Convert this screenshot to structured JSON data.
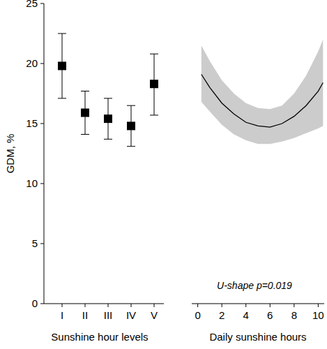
{
  "chart_data": [
    {
      "type": "point",
      "x_label": "Sunshine hour levels",
      "y_label": "GDM, %",
      "categories": [
        "I",
        "II",
        "III",
        "IV",
        "V"
      ],
      "values": [
        19.8,
        15.9,
        15.4,
        14.8,
        18.3
      ],
      "lower": [
        17.1,
        14.1,
        13.7,
        13.1,
        15.7
      ],
      "upper": [
        22.5,
        17.7,
        17.1,
        16.5,
        20.8
      ],
      "ylim": [
        0,
        25
      ],
      "yticks": [
        0,
        5,
        10,
        15,
        20,
        25
      ],
      "color": "#000000",
      "marker": "square"
    },
    {
      "type": "line",
      "x_label": "Daily sunshine hours",
      "annotation": "U-shape p=0.019",
      "x": [
        0.3,
        1,
        2,
        3,
        4,
        5,
        6,
        7,
        8,
        9,
        10,
        10.4
      ],
      "values": [
        19.1,
        18.0,
        16.7,
        15.8,
        15.1,
        14.8,
        14.7,
        15.0,
        15.6,
        16.5,
        17.7,
        18.4
      ],
      "lower": [
        16.8,
        16.0,
        14.9,
        14.1,
        13.6,
        13.3,
        13.3,
        13.5,
        13.8,
        14.2,
        14.6,
        14.8
      ],
      "upper": [
        21.5,
        20.2,
        18.6,
        17.5,
        16.7,
        16.3,
        16.2,
        16.5,
        17.5,
        19.0,
        21.0,
        22.0
      ],
      "xlim": [
        -0.5,
        10.5
      ],
      "xticks": [
        0,
        2,
        4,
        6,
        8,
        10
      ],
      "ylim": [
        0,
        25
      ],
      "color": "#000000",
      "tick_labels": "x"
    }
  ]
}
